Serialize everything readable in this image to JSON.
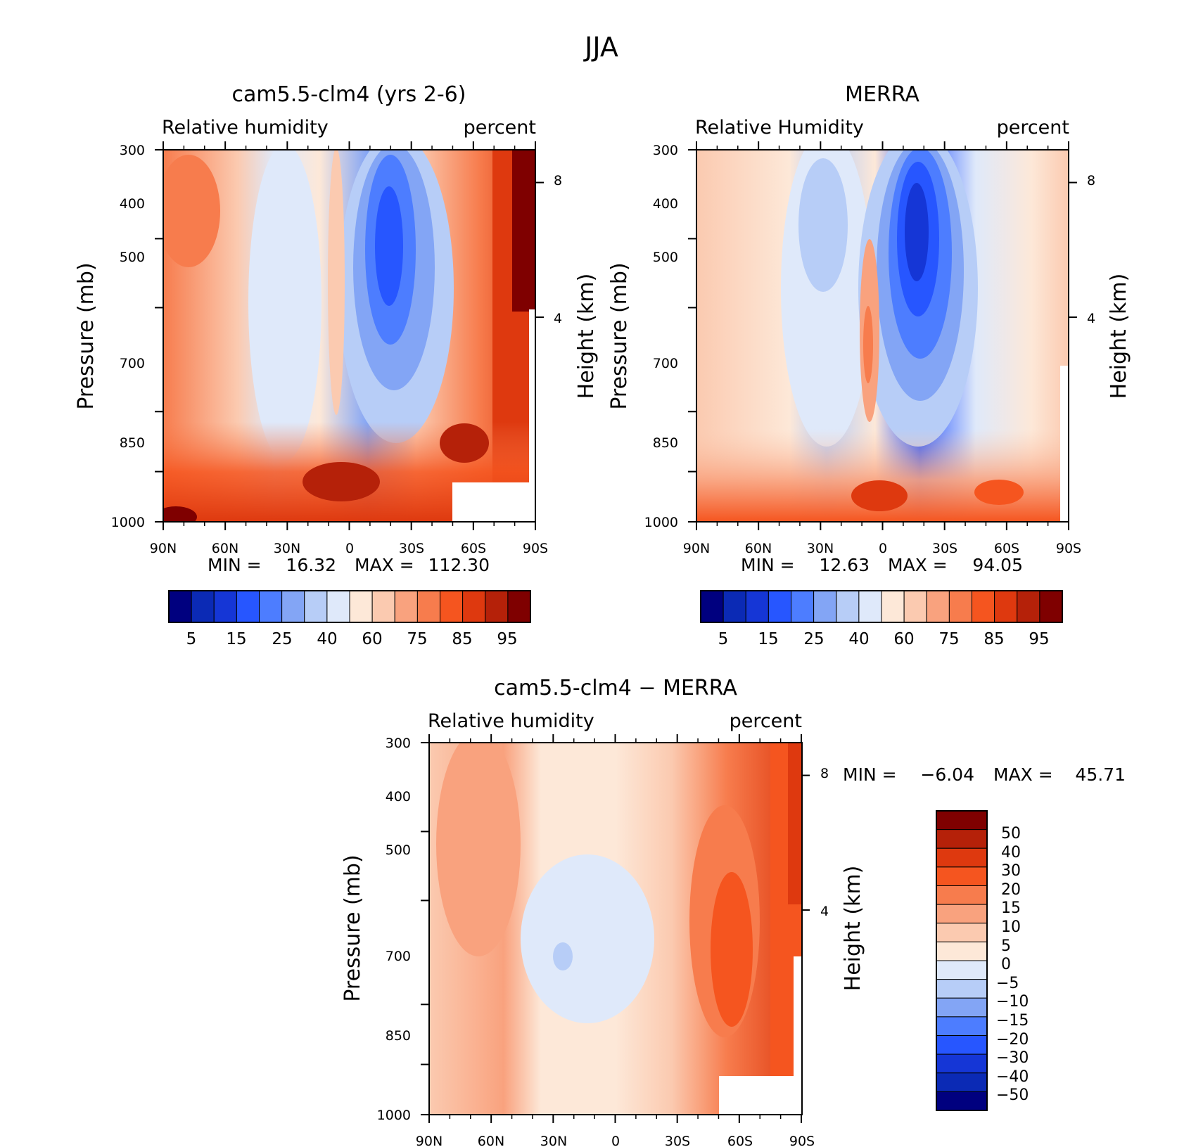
{
  "figure": {
    "title": "JJA"
  },
  "chart_data": [
    {
      "type": "heatmap",
      "title": "cam5.5-clm4 (yrs 2-6)",
      "subtitle_left": "Relative humidity",
      "subtitle_right": "percent",
      "xlabel": "",
      "ylabel": "Pressure (mb)",
      "ylabel_right": "Height (km)",
      "x_ticks": [
        "90N",
        "60N",
        "30N",
        "0",
        "30S",
        "60S",
        "90S"
      ],
      "y_ticks": [
        300,
        400,
        500,
        700,
        850,
        1000
      ],
      "y_right_ticks": [
        8,
        4
      ],
      "min_label": "MIN =",
      "min_value": "16.32",
      "max_label": "MAX =",
      "max_value": "112.30",
      "colorbar_labels": [
        "5",
        "15",
        "25",
        "40",
        "60",
        "75",
        "85",
        "95"
      ],
      "colorbar_levels": [
        5,
        10,
        15,
        20,
        25,
        30,
        40,
        50,
        60,
        65,
        75,
        80,
        85,
        90,
        95
      ]
    },
    {
      "type": "heatmap",
      "title": "MERRA",
      "subtitle_left": "Relative Humidity",
      "subtitle_right": "percent",
      "xlabel": "",
      "ylabel": "Pressure (mb)",
      "ylabel_right": "Height (km)",
      "x_ticks": [
        "90N",
        "60N",
        "30N",
        "0",
        "30S",
        "60S",
        "90S"
      ],
      "y_ticks": [
        300,
        400,
        500,
        700,
        850,
        1000
      ],
      "y_right_ticks": [
        8,
        4
      ],
      "min_label": "MIN =",
      "min_value": "12.63",
      "max_label": "MAX =",
      "max_value": "94.05",
      "colorbar_labels": [
        "5",
        "15",
        "25",
        "40",
        "60",
        "75",
        "85",
        "95"
      ],
      "colorbar_levels": [
        5,
        10,
        15,
        20,
        25,
        30,
        40,
        50,
        60,
        65,
        75,
        80,
        85,
        90,
        95
      ]
    },
    {
      "type": "heatmap",
      "title": "cam5.5-clm4 − MERRA",
      "subtitle_left": "Relative humidity",
      "subtitle_right": "percent",
      "xlabel": "",
      "ylabel": "Pressure (mb)",
      "ylabel_right": "Height (km)",
      "x_ticks": [
        "90N",
        "60N",
        "30N",
        "0",
        "30S",
        "60S",
        "90S"
      ],
      "y_ticks": [
        300,
        400,
        500,
        700,
        850,
        1000
      ],
      "y_right_ticks": [
        8,
        4
      ],
      "min_label": "MIN =",
      "min_value": "−6.04",
      "max_label": "MAX =",
      "max_value": "45.71",
      "colorbar_labels": [
        "50",
        "40",
        "30",
        "20",
        "15",
        "10",
        "5",
        "0",
        "−5",
        "−10",
        "−15",
        "−20",
        "−30",
        "−40",
        "−50"
      ]
    }
  ],
  "palette": {
    "seq": [
      "#00007f",
      "#0b2ab5",
      "#1536d6",
      "#2756ff",
      "#4d7dff",
      "#83a5f5",
      "#b7cdf7",
      "#dfe9fa",
      "#fde8d8",
      "#fbcab0",
      "#f9a27e",
      "#f77c4d",
      "#f5551f",
      "#de390f",
      "#b52109",
      "#7f0000"
    ],
    "diff": [
      "#7f0000",
      "#b52109",
      "#de390f",
      "#f5551f",
      "#f77c4d",
      "#f9a27e",
      "#fbcab0",
      "#fde8d8",
      "#dfe9fa",
      "#b7cdf7",
      "#83a5f5",
      "#4d7dff",
      "#2756ff",
      "#1536d6",
      "#0b2ab5",
      "#00007f"
    ]
  }
}
